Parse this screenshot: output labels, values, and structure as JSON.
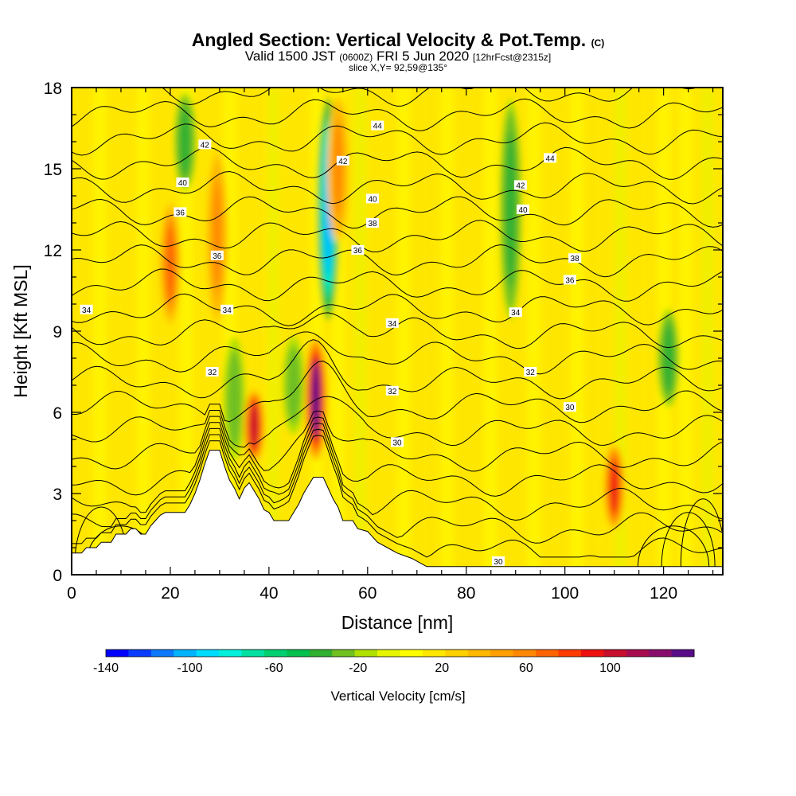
{
  "title": {
    "main": "Angled Section: Vertical Velocity & Pot.Temp.",
    "main_suffix": "(C)",
    "valid_prefix": "Valid 1500 JST",
    "valid_utc": "(0600Z)",
    "valid_date": "FRI 5 Jun 2020",
    "valid_fcst": "[12hrFcst@2315z]",
    "slice": "slice X,Y= 92,59@135°"
  },
  "chart_data": {
    "type": "heatmap",
    "xlabel": "Distance [nm]",
    "ylabel": "Height [Kft MSL]",
    "xlim": [
      0,
      132
    ],
    "ylim": [
      0,
      18
    ],
    "x_ticks": [
      0,
      20,
      40,
      60,
      80,
      100,
      120
    ],
    "y_ticks": [
      0,
      3,
      6,
      9,
      12,
      15,
      18
    ],
    "colorbar": {
      "label": "Vertical Velocity [cm/s]",
      "range": [
        -140,
        140
      ],
      "tick_labels": [
        -140,
        -100,
        -60,
        -20,
        20,
        60,
        100
      ],
      "colors": [
        "#0000ff",
        "#0a3cff",
        "#0a78ff",
        "#00b4ff",
        "#00dcff",
        "#00f0dc",
        "#00e0a0",
        "#00d070",
        "#00c050",
        "#30b030",
        "#70c020",
        "#b0e000",
        "#e6f500",
        "#ffff00",
        "#ffe800",
        "#ffd000",
        "#ffb800",
        "#ffa000",
        "#ff8800",
        "#ff6400",
        "#ff3c00",
        "#ee1010",
        "#c80c2c",
        "#a80c50",
        "#880c6c",
        "#5a0c88"
      ]
    },
    "background_value_range": [
      0,
      20
    ],
    "updraft_cores": [
      {
        "x": 20,
        "y_range": [
          9,
          14
        ],
        "peak": 70
      },
      {
        "x": 29.5,
        "y_range": [
          9,
          16
        ],
        "peak": 60
      },
      {
        "x": 37,
        "y_range": [
          4,
          7
        ],
        "peak": 100
      },
      {
        "x": 49.5,
        "y_range": [
          4,
          9
        ],
        "peak": 130
      },
      {
        "x": 54,
        "y_range": [
          12,
          18
        ],
        "peak": 60
      },
      {
        "x": 110,
        "y_range": [
          1.5,
          5
        ],
        "peak": 90
      }
    ],
    "downdraft_cores": [
      {
        "x": 23,
        "y_range": [
          14,
          18
        ],
        "peak": -40
      },
      {
        "x": 33,
        "y_range": [
          4,
          9
        ],
        "peak": -30
      },
      {
        "x": 52,
        "y_range": [
          9,
          18
        ],
        "peak": -100
      },
      {
        "x": 45,
        "y_range": [
          5,
          9
        ],
        "peak": -30
      },
      {
        "x": 89,
        "y_range": [
          9,
          18
        ],
        "peak": -40
      },
      {
        "x": 121,
        "y_range": [
          6,
          10
        ],
        "peak": -40
      }
    ],
    "contour_field": "Pot.Temp.",
    "contour_labels": [
      {
        "text": "42",
        "x": 27,
        "y": 15.9
      },
      {
        "text": "40",
        "x": 22.5,
        "y": 14.5
      },
      {
        "text": "36",
        "x": 22,
        "y": 13.4
      },
      {
        "text": "36",
        "x": 29.5,
        "y": 11.8
      },
      {
        "text": "34",
        "x": 3,
        "y": 9.8
      },
      {
        "text": "34",
        "x": 31.5,
        "y": 9.8
      },
      {
        "text": "32",
        "x": 28.5,
        "y": 7.5
      },
      {
        "text": "42",
        "x": 55,
        "y": 15.3
      },
      {
        "text": "44",
        "x": 62,
        "y": 16.6
      },
      {
        "text": "40",
        "x": 61,
        "y": 13.9
      },
      {
        "text": "38",
        "x": 61,
        "y": 13.0
      },
      {
        "text": "36",
        "x": 58,
        "y": 12.0
      },
      {
        "text": "34",
        "x": 65,
        "y": 9.3
      },
      {
        "text": "32",
        "x": 65,
        "y": 6.8
      },
      {
        "text": "30",
        "x": 66,
        "y": 4.9
      },
      {
        "text": "44",
        "x": 97,
        "y": 15.4
      },
      {
        "text": "42",
        "x": 91,
        "y": 14.4
      },
      {
        "text": "40",
        "x": 91.5,
        "y": 13.5
      },
      {
        "text": "38",
        "x": 102,
        "y": 11.7
      },
      {
        "text": "36",
        "x": 101,
        "y": 10.9
      },
      {
        "text": "34",
        "x": 90,
        "y": 9.7
      },
      {
        "text": "32",
        "x": 93,
        "y": 7.5
      },
      {
        "text": "30",
        "x": 101,
        "y": 6.2
      },
      {
        "text": "30",
        "x": 86.5,
        "y": 0.5
      }
    ],
    "terrain_profile": [
      [
        0,
        0.8
      ],
      [
        2,
        0.8
      ],
      [
        3,
        1.0
      ],
      [
        5,
        1.0
      ],
      [
        6,
        1.2
      ],
      [
        8,
        1.2
      ],
      [
        9,
        1.5
      ],
      [
        11,
        1.5
      ],
      [
        12,
        1.7
      ],
      [
        13,
        1.7
      ],
      [
        14,
        1.5
      ],
      [
        15,
        1.5
      ],
      [
        16,
        1.8
      ],
      [
        17,
        2.0
      ],
      [
        18,
        2.2
      ],
      [
        19,
        2.3
      ],
      [
        23,
        2.3
      ],
      [
        24,
        2.6
      ],
      [
        25,
        3.0
      ],
      [
        26,
        3.5
      ],
      [
        27,
        4.1
      ],
      [
        28,
        4.6
      ],
      [
        30,
        4.6
      ],
      [
        31,
        4.0
      ],
      [
        32,
        3.5
      ],
      [
        33,
        3.2
      ],
      [
        34,
        2.8
      ],
      [
        35,
        3.2
      ],
      [
        36,
        3.4
      ],
      [
        37,
        3.1
      ],
      [
        38,
        2.8
      ],
      [
        39,
        2.4
      ],
      [
        40,
        2.3
      ],
      [
        41,
        2.0
      ],
      [
        44,
        2.0
      ],
      [
        45,
        2.3
      ],
      [
        46,
        2.6
      ],
      [
        47,
        3.0
      ],
      [
        48,
        3.3
      ],
      [
        49,
        3.6
      ],
      [
        51,
        3.6
      ],
      [
        52,
        3.2
      ],
      [
        53,
        2.8
      ],
      [
        54,
        2.5
      ],
      [
        55,
        2.0
      ],
      [
        57,
        2.0
      ],
      [
        58,
        1.7
      ],
      [
        60,
        1.6
      ],
      [
        61,
        1.4
      ],
      [
        62,
        1.2
      ],
      [
        64,
        1.0
      ],
      [
        66,
        0.8
      ],
      [
        69,
        0.6
      ],
      [
        71,
        0.4
      ],
      [
        72,
        0.3
      ],
      [
        132,
        0.3
      ]
    ]
  }
}
